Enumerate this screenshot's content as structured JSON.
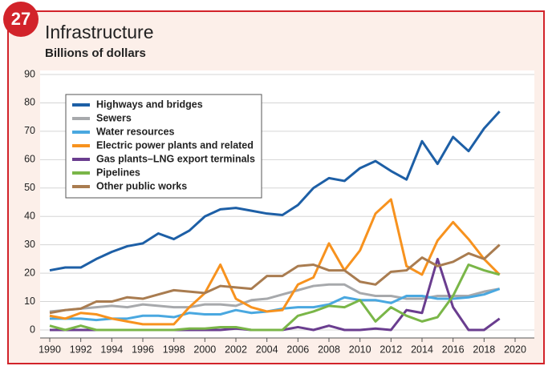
{
  "badge": "27",
  "chart_data": {
    "type": "line",
    "title": "Infrastructure",
    "subtitle": "Billions of dollars",
    "x": [
      1990,
      1991,
      1992,
      1993,
      1994,
      1995,
      1996,
      1997,
      1998,
      1999,
      2000,
      2001,
      2002,
      2003,
      2004,
      2005,
      2006,
      2007,
      2008,
      2009,
      2010,
      2011,
      2012,
      2013,
      2014,
      2015,
      2016,
      2017,
      2018,
      2019
    ],
    "series": [
      {
        "name": "Highways and bridges",
        "color": "#1d5fa6",
        "values": [
          21,
          22,
          22,
          25,
          27.5,
          29.5,
          30.5,
          34,
          32,
          35,
          40,
          42.5,
          43,
          42,
          41,
          40.5,
          44,
          50,
          53.5,
          52.5,
          57,
          59.5,
          56,
          53,
          66.5,
          58.5,
          68,
          63,
          71,
          77
        ]
      },
      {
        "name": "Sewers",
        "color": "#a7a9ac",
        "values": [
          6.5,
          7,
          7.5,
          8,
          8.5,
          8,
          9,
          8.5,
          8,
          8,
          9,
          9,
          8.5,
          10.5,
          11,
          12.5,
          14,
          15.5,
          16,
          16,
          13,
          12,
          12,
          11,
          11,
          12,
          12,
          12,
          13.5,
          14.5
        ]
      },
      {
        "name": "Water resources",
        "color": "#4aa8e0",
        "values": [
          4,
          4,
          4,
          3.5,
          4,
          4,
          5,
          5,
          4.5,
          6,
          5.5,
          5.5,
          7,
          6,
          6.5,
          7.5,
          8,
          8,
          9,
          11.5,
          10.5,
          10.5,
          9.5,
          12,
          12,
          11,
          11,
          11.5,
          12.5,
          14.5
        ]
      },
      {
        "name": "Electric power plants and related",
        "color": "#f7921e",
        "values": [
          5,
          4,
          6,
          5.5,
          4,
          3,
          2,
          2,
          2,
          8,
          13,
          23,
          11,
          8,
          6.5,
          7,
          16,
          18.5,
          30.5,
          21,
          28,
          41,
          46,
          22.5,
          19.5,
          31.5,
          38,
          32,
          25,
          19.5
        ]
      },
      {
        "name": "Gas plants–LNG export terminals",
        "color": "#6a3d8f",
        "values": [
          0,
          0,
          0,
          0,
          0,
          0,
          0,
          0,
          0,
          0,
          0,
          0,
          0.5,
          0,
          0,
          0,
          1,
          0,
          1.5,
          0,
          0,
          0.5,
          0,
          7,
          6,
          25,
          8,
          0,
          0,
          4
        ]
      },
      {
        "name": "Pipelines",
        "color": "#7ab648",
        "values": [
          1.5,
          0,
          1.5,
          0,
          0,
          0,
          0,
          0,
          0,
          0.5,
          0.5,
          1,
          1,
          0,
          0,
          0,
          5,
          6.5,
          8.5,
          8,
          10.5,
          3,
          8,
          5,
          3,
          4.5,
          12,
          23,
          21,
          19.5
        ]
      },
      {
        "name": "Other public works",
        "color": "#a97c50",
        "values": [
          6,
          7,
          7.5,
          10,
          10,
          11.5,
          11,
          12.5,
          14,
          13.5,
          13,
          15.5,
          15,
          14.5,
          19,
          19,
          22.5,
          23,
          21,
          21,
          17,
          16,
          20.5,
          21,
          25.5,
          22.5,
          24,
          27,
          25,
          30
        ]
      }
    ],
    "xlim": [
      1990,
      2020
    ],
    "xticks": [
      1990,
      1992,
      1994,
      1996,
      1998,
      2000,
      2002,
      2004,
      2006,
      2008,
      2010,
      2012,
      2014,
      2016,
      2018,
      2020
    ],
    "ylim": [
      0,
      90
    ],
    "yticks": [
      0,
      10,
      20,
      30,
      40,
      50,
      60,
      70,
      80,
      90
    ],
    "grid": true,
    "legend": "upper left"
  }
}
